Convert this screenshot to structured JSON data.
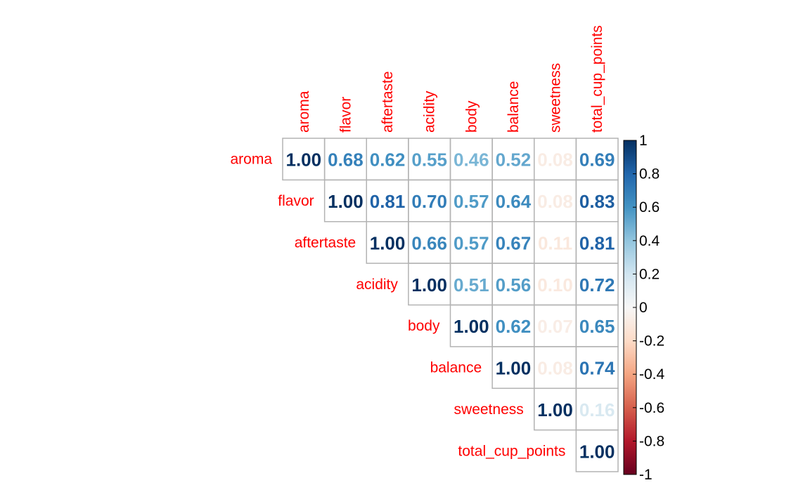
{
  "chart_data": {
    "type": "heatmap",
    "variables": [
      "aroma",
      "flavor",
      "aftertaste",
      "acidity",
      "body",
      "balance",
      "sweetness",
      "total_cup_points"
    ],
    "matrix_upper": [
      [
        "1.00",
        "0.68",
        "0.62",
        "0.55",
        "0.46",
        "0.52",
        "-0.08",
        "0.69"
      ],
      [
        "1.00",
        "0.81",
        "0.70",
        "0.57",
        "0.64",
        "-0.08",
        "0.83"
      ],
      [
        "1.00",
        "0.66",
        "0.57",
        "0.67",
        "-0.11",
        "0.81"
      ],
      [
        "1.00",
        "0.51",
        "0.56",
        "-0.10",
        "0.72"
      ],
      [
        "1.00",
        "0.62",
        "-0.07",
        "0.65"
      ],
      [
        "1.00",
        "-0.08",
        "0.74"
      ],
      [
        "1.00",
        "0.16"
      ],
      [
        "1.00"
      ]
    ],
    "colorbar": {
      "ticks": [
        "1",
        "0.8",
        "0.6",
        "0.4",
        "0.2",
        "0",
        "-0.2",
        "-0.4",
        "-0.6",
        "-0.8",
        "-1"
      ],
      "range": [
        -1,
        1
      ]
    },
    "label_color": "#ff0000",
    "grid_color": "#b3b3b3"
  }
}
